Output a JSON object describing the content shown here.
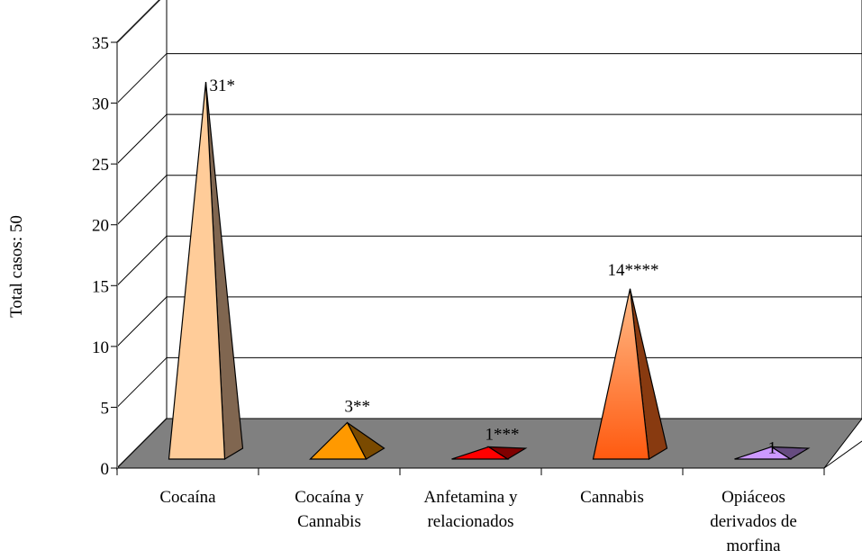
{
  "chart_data": {
    "type": "bar",
    "style": "3d-pyramid",
    "ylabel": "Total casos: 50",
    "ylim": [
      0,
      35
    ],
    "yticks": [
      "0",
      "5",
      "10",
      "15",
      "20",
      "25",
      "30",
      "35"
    ],
    "grid": true,
    "categories": [
      [
        "Cocaína"
      ],
      [
        "Cocaína y",
        "Cannabis"
      ],
      [
        "Anfetamina y",
        "relacionados"
      ],
      [
        "Cannabis"
      ],
      [
        "Opiáceos",
        "derivados de",
        "morfina"
      ]
    ],
    "values": [
      31,
      3,
      1,
      14,
      1
    ],
    "data_labels": [
      "31*",
      "3**",
      "1***",
      "14****",
      "1"
    ],
    "colors": [
      {
        "front": "#ffcc99",
        "side": "#806650"
      },
      {
        "front": "#ff9900",
        "side": "#7a4a00"
      },
      {
        "front": "#ff0000",
        "side": "#800000"
      },
      {
        "front": "#ff6a1a",
        "side": "#883a10"
      },
      {
        "front": "#cc99ff",
        "side": "#664c80"
      }
    ],
    "floor_color": "#808080"
  }
}
